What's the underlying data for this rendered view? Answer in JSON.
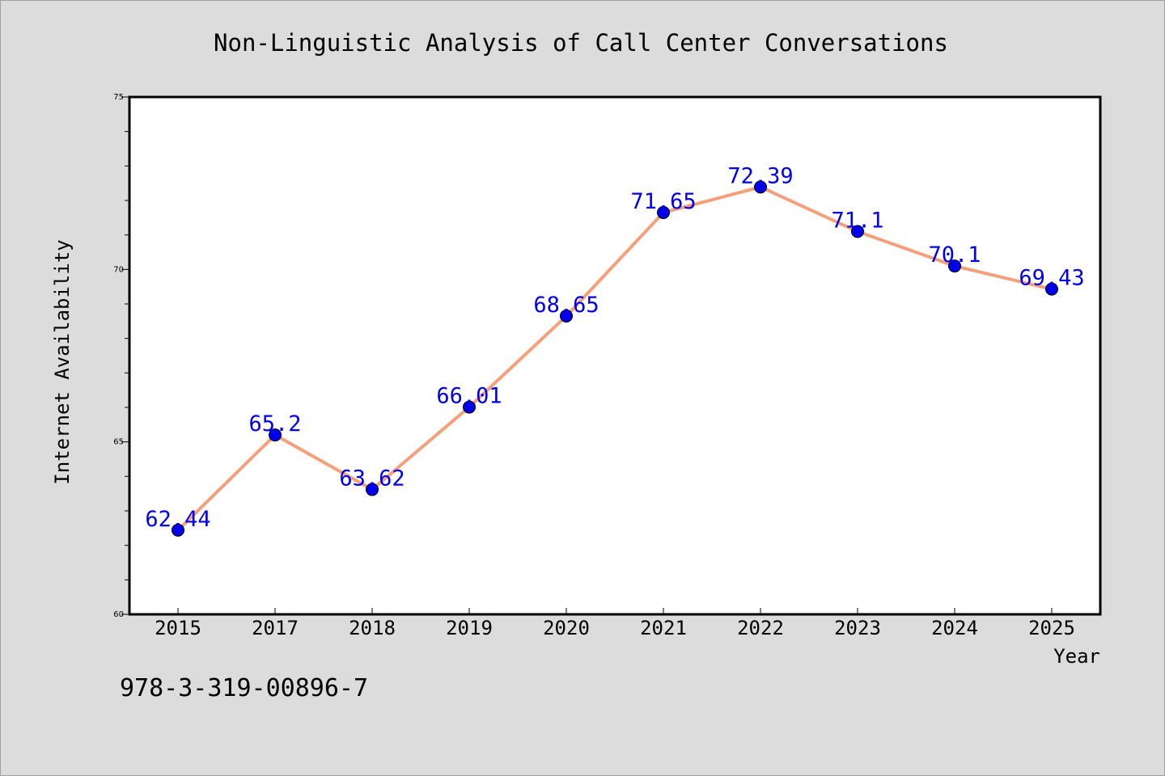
{
  "footer_text": "978-3-319-00896-7",
  "chart_data": {
    "type": "line",
    "title": "Non-Linguistic Analysis of Call Center Conversations",
    "xlabel": "Year",
    "ylabel": "Internet Availability",
    "categories": [
      "2015",
      "2017",
      "2018",
      "2019",
      "2020",
      "2021",
      "2022",
      "2023",
      "2024",
      "2025"
    ],
    "series": [
      {
        "values": [
          62.44,
          65.2,
          63.62,
          66.01,
          68.65,
          71.65,
          72.39,
          71.1,
          70.1,
          69.43
        ],
        "labels": [
          "62.44",
          "65.2",
          "63.62",
          "66.01",
          "68.65",
          "71.65",
          "72.39",
          "71.1",
          "70.1",
          "69.43"
        ],
        "line_color": "#f4a07a",
        "marker_color": "#0000ee",
        "label_color": "#0000ee"
      }
    ],
    "ylim": [
      60,
      75
    ],
    "yticks": [
      60,
      65,
      70,
      75
    ],
    "y_minor_step": 1,
    "grid": false,
    "legend": "none",
    "colors": {
      "background": "#dcdcdc",
      "plot_background": "#ffffff",
      "axes": "#000000"
    }
  }
}
